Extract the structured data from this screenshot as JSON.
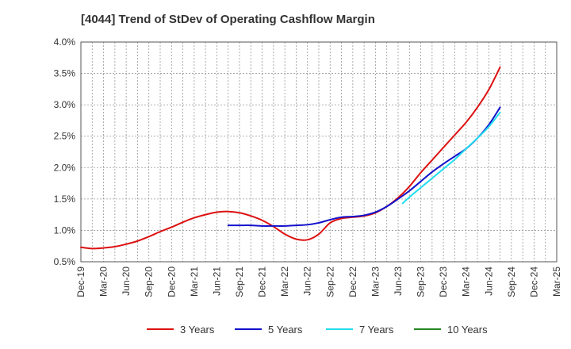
{
  "chart_data": {
    "type": "line",
    "title": "[4044]  Trend of StDev of Operating Cashflow Margin",
    "xlabel": "",
    "ylabel": "",
    "ylim": [
      0.5,
      4.0
    ],
    "y_ticks": [
      "0.5%",
      "1.0%",
      "1.5%",
      "2.0%",
      "2.5%",
      "3.0%",
      "3.5%",
      "4.0%"
    ],
    "y_tick_values": [
      0.5,
      1.0,
      1.5,
      2.0,
      2.5,
      3.0,
      3.5,
      4.0
    ],
    "x_ticks": [
      "Dec-19",
      "Mar-20",
      "Jun-20",
      "Sep-20",
      "Dec-20",
      "Mar-21",
      "Jun-21",
      "Sep-21",
      "Dec-21",
      "Mar-22",
      "Jun-22",
      "Sep-22",
      "Dec-22",
      "Mar-23",
      "Jun-23",
      "Sep-23",
      "Dec-23",
      "Mar-24",
      "Jun-24",
      "Sep-24",
      "Dec-24",
      "Mar-25"
    ],
    "grid": true,
    "legend_position": "bottom",
    "series": [
      {
        "name": "3 Years",
        "color": "#dd1111",
        "points": [
          [
            0,
            0.73
          ],
          [
            0.5,
            0.71
          ],
          [
            1,
            0.72
          ],
          [
            1.5,
            0.74
          ],
          [
            2,
            0.78
          ],
          [
            2.5,
            0.83
          ],
          [
            3,
            0.9
          ],
          [
            3.5,
            0.98
          ],
          [
            4,
            1.05
          ],
          [
            4.5,
            1.13
          ],
          [
            5,
            1.2
          ],
          [
            5.5,
            1.25
          ],
          [
            6,
            1.29
          ],
          [
            6.5,
            1.3
          ],
          [
            7,
            1.28
          ],
          [
            7.5,
            1.23
          ],
          [
            8,
            1.16
          ],
          [
            8.5,
            1.06
          ],
          [
            9,
            0.94
          ],
          [
            9.5,
            0.86
          ],
          [
            10,
            0.85
          ],
          [
            10.5,
            0.94
          ],
          [
            11,
            1.12
          ],
          [
            11.5,
            1.19
          ],
          [
            12,
            1.21
          ],
          [
            12.5,
            1.23
          ],
          [
            13,
            1.28
          ],
          [
            13.5,
            1.38
          ],
          [
            14,
            1.52
          ],
          [
            14.5,
            1.7
          ],
          [
            15,
            1.92
          ],
          [
            15.5,
            2.12
          ],
          [
            16,
            2.32
          ],
          [
            16.5,
            2.52
          ],
          [
            17,
            2.72
          ],
          [
            17.5,
            2.96
          ],
          [
            18,
            3.24
          ],
          [
            18.5,
            3.6
          ]
        ]
      },
      {
        "name": "5 Years",
        "color": "#1111cc",
        "points": [
          [
            6.5,
            1.08
          ],
          [
            7,
            1.08
          ],
          [
            7.5,
            1.08
          ],
          [
            8,
            1.07
          ],
          [
            8.5,
            1.07
          ],
          [
            9,
            1.07
          ],
          [
            9.5,
            1.08
          ],
          [
            10,
            1.09
          ],
          [
            10.5,
            1.12
          ],
          [
            11,
            1.17
          ],
          [
            11.5,
            1.21
          ],
          [
            12,
            1.22
          ],
          [
            12.5,
            1.24
          ],
          [
            13,
            1.29
          ],
          [
            13.5,
            1.38
          ],
          [
            14,
            1.5
          ],
          [
            14.5,
            1.63
          ],
          [
            15,
            1.78
          ],
          [
            15.5,
            1.93
          ],
          [
            16,
            2.06
          ],
          [
            16.5,
            2.18
          ],
          [
            17,
            2.3
          ],
          [
            17.5,
            2.47
          ],
          [
            18,
            2.68
          ],
          [
            18.5,
            2.96
          ]
        ]
      },
      {
        "name": "7 Years",
        "color": "#22ddee",
        "points": [
          [
            14.2,
            1.43
          ],
          [
            14.5,
            1.53
          ],
          [
            15,
            1.68
          ],
          [
            15.5,
            1.83
          ],
          [
            16,
            1.98
          ],
          [
            16.5,
            2.13
          ],
          [
            17,
            2.3
          ],
          [
            17.5,
            2.47
          ],
          [
            18,
            2.65
          ],
          [
            18.5,
            2.88
          ]
        ]
      },
      {
        "name": "10 Years",
        "color": "#228822",
        "points": []
      }
    ]
  }
}
